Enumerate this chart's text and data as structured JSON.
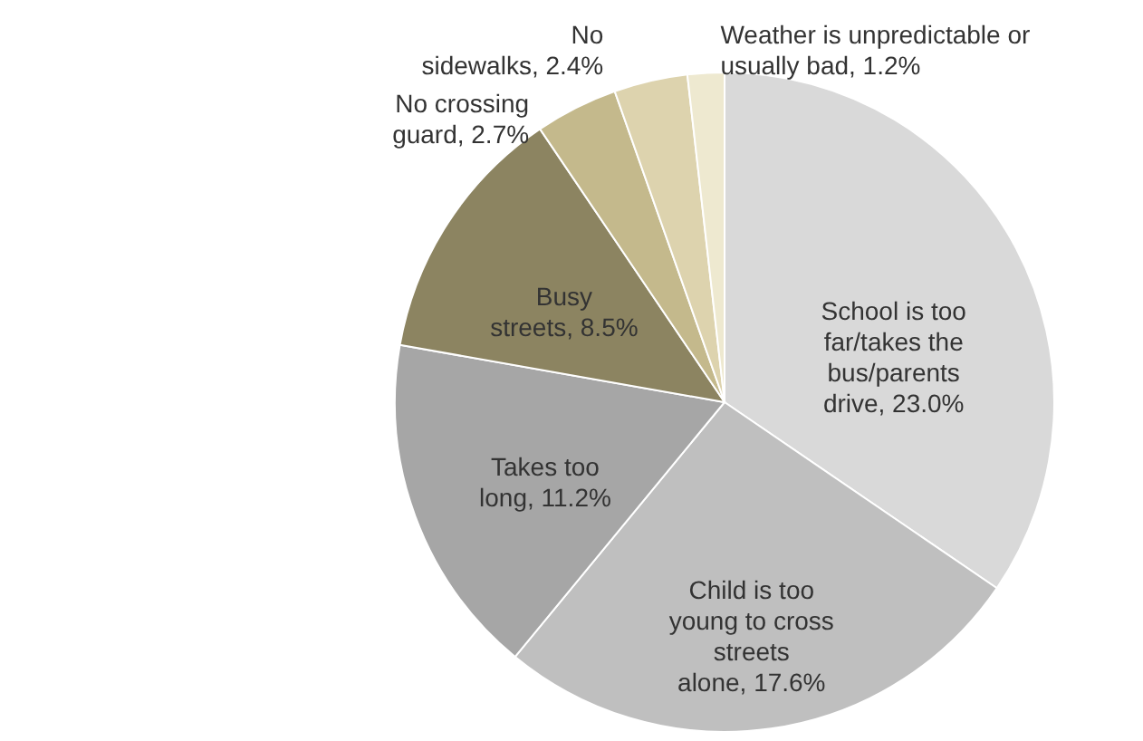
{
  "chart_data": {
    "type": "pie",
    "categories": [
      "School is too far/takes the bus/parents drive",
      "Child is too young to cross streets alone",
      "Takes too long",
      "Busy streets",
      "No crossing guard",
      "No sidewalks",
      "Weather is unpredictable or usually bad"
    ],
    "values": [
      23.0,
      17.6,
      11.2,
      8.5,
      2.7,
      2.4,
      1.2
    ],
    "value_labels": [
      "23.0%",
      "17.6%",
      "11.2%",
      "8.5%",
      "2.7%",
      "2.4%",
      "1.2%"
    ],
    "colors": [
      "#d9d9d9",
      "#bfbfbf",
      "#a6a6a6",
      "#8c8461",
      "#c4b98c",
      "#ddd3ae",
      "#eee9d0"
    ]
  }
}
